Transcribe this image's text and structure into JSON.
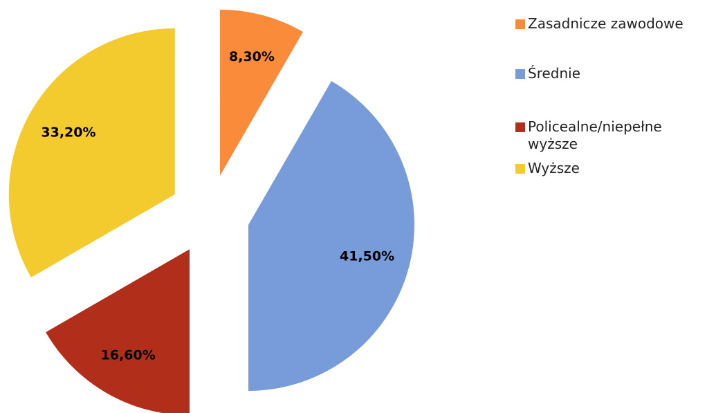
{
  "chart_data": {
    "type": "pie",
    "categories": [
      "Zasadnicze zawodowe",
      "Średnie",
      "Policealne/niepełne wyższe",
      "Wyższe"
    ],
    "values": [
      8.3,
      41.5,
      16.6,
      33.2
    ],
    "value_labels": [
      "8,30%",
      "41,50%",
      "16,60%",
      "33,20%"
    ],
    "colors": [
      "#f98b3a",
      "#779cd9",
      "#b02e1a",
      "#f4cb2f"
    ],
    "exploded": true,
    "legend": "right"
  }
}
